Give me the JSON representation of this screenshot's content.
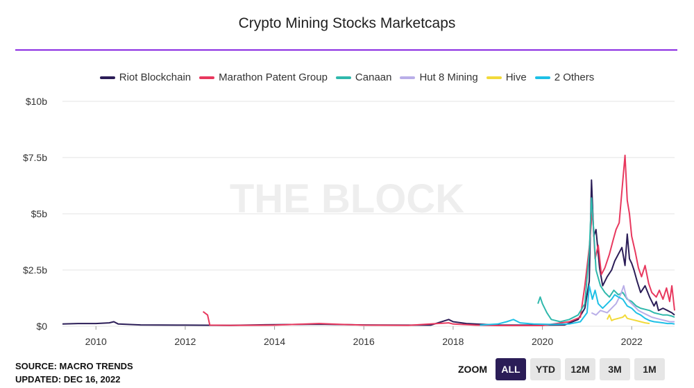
{
  "title": "Crypto Mining Stocks Marketcaps",
  "watermark": "THE BLOCK",
  "footer": {
    "source": "SOURCE: MACRO TRENDS",
    "updated": "UPDATED: DEC 16, 2022"
  },
  "zoom": {
    "label": "ZOOM",
    "buttons": [
      "ALL",
      "YTD",
      "12M",
      "3M",
      "1M"
    ],
    "active": "ALL"
  },
  "chart_data": {
    "type": "line",
    "title": "Crypto Mining Stocks Marketcaps",
    "xlabel": "",
    "ylabel": "",
    "xlim": [
      2009.25,
      2022.96
    ],
    "ylim": [
      0,
      10
    ],
    "y_unit": "billions USD",
    "y_ticks": [
      0,
      2.5,
      5,
      7.5,
      10
    ],
    "y_tick_labels": [
      "$0",
      "$2.5b",
      "$5b",
      "$7.5b",
      "$10b"
    ],
    "x_ticks": [
      2010,
      2012,
      2014,
      2016,
      2018,
      2020,
      2022
    ],
    "x_tick_labels": [
      "2010",
      "2012",
      "2014",
      "2016",
      "2018",
      "2020",
      "2022"
    ],
    "grid": true,
    "legend_position": "top-center",
    "series": [
      {
        "name": "Riot Blockchain",
        "color": "#2b1d57",
        "points": [
          [
            2009.25,
            0.1
          ],
          [
            2009.6,
            0.12
          ],
          [
            2010.0,
            0.12
          ],
          [
            2010.3,
            0.15
          ],
          [
            2010.4,
            0.2
          ],
          [
            2010.5,
            0.1
          ],
          [
            2011.0,
            0.06
          ],
          [
            2012.0,
            0.05
          ],
          [
            2013.0,
            0.04
          ],
          [
            2014.0,
            0.07
          ],
          [
            2015.0,
            0.09
          ],
          [
            2016.0,
            0.06
          ],
          [
            2017.0,
            0.05
          ],
          [
            2017.5,
            0.05
          ],
          [
            2017.9,
            0.3
          ],
          [
            2018.0,
            0.2
          ],
          [
            2018.3,
            0.12
          ],
          [
            2019.0,
            0.05
          ],
          [
            2019.5,
            0.05
          ],
          [
            2020.0,
            0.05
          ],
          [
            2020.5,
            0.06
          ],
          [
            2020.8,
            0.3
          ],
          [
            2020.95,
            0.8
          ],
          [
            2021.05,
            2.0
          ],
          [
            2021.1,
            6.5
          ],
          [
            2021.15,
            4.0
          ],
          [
            2021.2,
            4.3
          ],
          [
            2021.28,
            2.6
          ],
          [
            2021.35,
            1.8
          ],
          [
            2021.45,
            2.2
          ],
          [
            2021.55,
            2.5
          ],
          [
            2021.62,
            2.9
          ],
          [
            2021.7,
            3.2
          ],
          [
            2021.78,
            3.5
          ],
          [
            2021.85,
            2.7
          ],
          [
            2021.9,
            4.1
          ],
          [
            2021.95,
            3.0
          ],
          [
            2022.0,
            2.8
          ],
          [
            2022.05,
            2.5
          ],
          [
            2022.12,
            2.0
          ],
          [
            2022.2,
            1.5
          ],
          [
            2022.3,
            1.8
          ],
          [
            2022.4,
            1.3
          ],
          [
            2022.5,
            0.9
          ],
          [
            2022.55,
            1.1
          ],
          [
            2022.6,
            0.7
          ],
          [
            2022.7,
            0.8
          ],
          [
            2022.8,
            0.7
          ],
          [
            2022.9,
            0.6
          ],
          [
            2022.96,
            0.5
          ]
        ]
      },
      {
        "name": "Marathon Patent Group",
        "color": "#e8385e",
        "points": [
          [
            2012.4,
            0.65
          ],
          [
            2012.5,
            0.5
          ],
          [
            2012.55,
            0.05
          ],
          [
            2013.0,
            0.04
          ],
          [
            2014.0,
            0.05
          ],
          [
            2015.0,
            0.12
          ],
          [
            2015.5,
            0.08
          ],
          [
            2016.0,
            0.05
          ],
          [
            2017.0,
            0.04
          ],
          [
            2017.9,
            0.15
          ],
          [
            2018.0,
            0.1
          ],
          [
            2018.5,
            0.05
          ],
          [
            2019.0,
            0.03
          ],
          [
            2020.0,
            0.03
          ],
          [
            2020.6,
            0.2
          ],
          [
            2020.85,
            0.4
          ],
          [
            2020.95,
            1.8
          ],
          [
            2021.05,
            3.5
          ],
          [
            2021.12,
            5.2
          ],
          [
            2021.18,
            3.0
          ],
          [
            2021.25,
            3.6
          ],
          [
            2021.32,
            2.3
          ],
          [
            2021.4,
            2.6
          ],
          [
            2021.5,
            3.2
          ],
          [
            2021.58,
            3.8
          ],
          [
            2021.65,
            4.3
          ],
          [
            2021.72,
            4.6
          ],
          [
            2021.78,
            6.0
          ],
          [
            2021.85,
            7.6
          ],
          [
            2021.9,
            5.6
          ],
          [
            2021.95,
            5.0
          ],
          [
            2022.0,
            4.0
          ],
          [
            2022.08,
            3.3
          ],
          [
            2022.15,
            2.6
          ],
          [
            2022.22,
            2.2
          ],
          [
            2022.3,
            2.7
          ],
          [
            2022.38,
            1.9
          ],
          [
            2022.45,
            1.5
          ],
          [
            2022.55,
            1.3
          ],
          [
            2022.62,
            1.6
          ],
          [
            2022.7,
            1.2
          ],
          [
            2022.78,
            1.7
          ],
          [
            2022.85,
            1.1
          ],
          [
            2022.9,
            1.8
          ],
          [
            2022.96,
            0.7
          ]
        ]
      },
      {
        "name": "Canaan",
        "color": "#2fb8ac",
        "points": [
          [
            2019.9,
            1.0
          ],
          [
            2019.95,
            1.3
          ],
          [
            2020.0,
            1.0
          ],
          [
            2020.1,
            0.6
          ],
          [
            2020.2,
            0.3
          ],
          [
            2020.4,
            0.2
          ],
          [
            2020.6,
            0.3
          ],
          [
            2020.8,
            0.5
          ],
          [
            2020.95,
            1.0
          ],
          [
            2021.05,
            3.3
          ],
          [
            2021.1,
            5.7
          ],
          [
            2021.15,
            4.2
          ],
          [
            2021.2,
            2.5
          ],
          [
            2021.3,
            1.8
          ],
          [
            2021.4,
            1.5
          ],
          [
            2021.5,
            1.3
          ],
          [
            2021.6,
            1.6
          ],
          [
            2021.7,
            1.4
          ],
          [
            2021.8,
            1.5
          ],
          [
            2021.9,
            1.2
          ],
          [
            2022.0,
            1.1
          ],
          [
            2022.1,
            0.9
          ],
          [
            2022.2,
            0.8
          ],
          [
            2022.3,
            0.75
          ],
          [
            2022.4,
            0.7
          ],
          [
            2022.5,
            0.6
          ],
          [
            2022.6,
            0.55
          ],
          [
            2022.7,
            0.5
          ],
          [
            2022.8,
            0.5
          ],
          [
            2022.9,
            0.45
          ],
          [
            2022.96,
            0.4
          ]
        ]
      },
      {
        "name": "Hut 8 Mining",
        "color": "#b9aee8",
        "points": [
          [
            2021.1,
            0.6
          ],
          [
            2021.2,
            0.5
          ],
          [
            2021.3,
            0.7
          ],
          [
            2021.45,
            0.6
          ],
          [
            2021.55,
            0.8
          ],
          [
            2021.65,
            1.0
          ],
          [
            2021.75,
            1.4
          ],
          [
            2021.82,
            1.8
          ],
          [
            2021.88,
            1.3
          ],
          [
            2021.95,
            1.1
          ],
          [
            2022.05,
            0.9
          ],
          [
            2022.15,
            0.7
          ],
          [
            2022.25,
            0.6
          ],
          [
            2022.35,
            0.5
          ],
          [
            2022.45,
            0.4
          ],
          [
            2022.55,
            0.35
          ],
          [
            2022.65,
            0.3
          ],
          [
            2022.75,
            0.25
          ],
          [
            2022.85,
            0.2
          ],
          [
            2022.96,
            0.2
          ]
        ]
      },
      {
        "name": "Hive",
        "color": "#f2da3a",
        "points": [
          [
            2021.45,
            0.3
          ],
          [
            2021.5,
            0.5
          ],
          [
            2021.55,
            0.25
          ],
          [
            2021.6,
            0.3
          ],
          [
            2021.7,
            0.35
          ],
          [
            2021.8,
            0.4
          ],
          [
            2021.85,
            0.5
          ],
          [
            2021.9,
            0.35
          ],
          [
            2022.0,
            0.3
          ],
          [
            2022.1,
            0.25
          ],
          [
            2022.2,
            0.2
          ],
          [
            2022.3,
            0.15
          ],
          [
            2022.4,
            0.12
          ]
        ]
      },
      {
        "name": "2 Others",
        "color": "#1ec0e6",
        "points": [
          [
            2018.6,
            0.05
          ],
          [
            2019.0,
            0.1
          ],
          [
            2019.2,
            0.2
          ],
          [
            2019.35,
            0.3
          ],
          [
            2019.5,
            0.15
          ],
          [
            2019.8,
            0.1
          ],
          [
            2020.2,
            0.08
          ],
          [
            2020.6,
            0.1
          ],
          [
            2020.85,
            0.2
          ],
          [
            2021.0,
            0.6
          ],
          [
            2021.05,
            1.8
          ],
          [
            2021.12,
            1.2
          ],
          [
            2021.18,
            1.6
          ],
          [
            2021.25,
            1.0
          ],
          [
            2021.35,
            0.8
          ],
          [
            2021.45,
            1.0
          ],
          [
            2021.55,
            1.2
          ],
          [
            2021.62,
            1.4
          ],
          [
            2021.7,
            1.3
          ],
          [
            2021.8,
            1.2
          ],
          [
            2021.9,
            0.9
          ],
          [
            2022.0,
            0.8
          ],
          [
            2022.1,
            0.6
          ],
          [
            2022.2,
            0.5
          ],
          [
            2022.3,
            0.35
          ],
          [
            2022.4,
            0.25
          ],
          [
            2022.5,
            0.2
          ],
          [
            2022.6,
            0.18
          ],
          [
            2022.7,
            0.15
          ],
          [
            2022.8,
            0.12
          ],
          [
            2022.9,
            0.12
          ],
          [
            2022.96,
            0.1
          ]
        ]
      }
    ]
  }
}
